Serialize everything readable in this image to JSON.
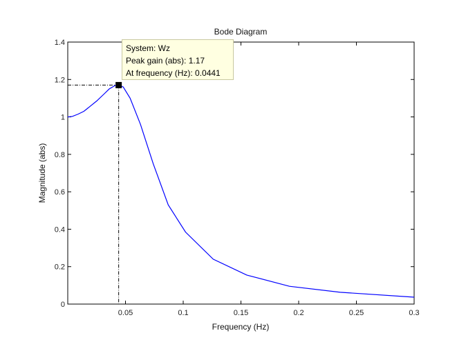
{
  "chart_data": {
    "type": "line",
    "title": "Bode Diagram",
    "xlabel": "Frequency  (Hz)",
    "ylabel": "Magnitude (abs)",
    "xlim": [
      0,
      0.3
    ],
    "ylim": [
      0,
      1.4
    ],
    "xticks": [
      0.05,
      0.1,
      0.15,
      0.2,
      0.25,
      0.3
    ],
    "xtick_labels": [
      "0.05",
      "0.1",
      "0.15",
      "0.2",
      "0.25",
      "0.3"
    ],
    "yticks": [
      0,
      0.2,
      0.4,
      0.6,
      0.8,
      1,
      1.2,
      1.4
    ],
    "ytick_labels": [
      "0",
      "0.2",
      "0.4",
      "0.6",
      "0.8",
      "1",
      "1.2",
      "1.4"
    ],
    "grid": false,
    "line_color": "#0000ff",
    "series": [
      {
        "x": [
          0,
          0.004,
          0.009,
          0.014,
          0.02,
          0.025,
          0.031,
          0.036,
          0.041,
          0.0441,
          0.048,
          0.054,
          0.063,
          0.074,
          0.087,
          0.102,
          0.126,
          0.155,
          0.192,
          0.236,
          0.3
        ],
        "y": [
          1.0,
          1.003,
          1.015,
          1.03,
          1.06,
          1.085,
          1.12,
          1.15,
          1.168,
          1.17,
          1.16,
          1.1,
          0.96,
          0.75,
          0.53,
          0.385,
          0.24,
          0.155,
          0.095,
          0.063,
          0.037
        ]
      }
    ],
    "datatip": {
      "x": 0.0441,
      "y": 1.17,
      "line1": "System: Wz",
      "line2": "Peak gain (abs): 1.17",
      "line3": "At frequency (Hz): 0.0441"
    }
  }
}
